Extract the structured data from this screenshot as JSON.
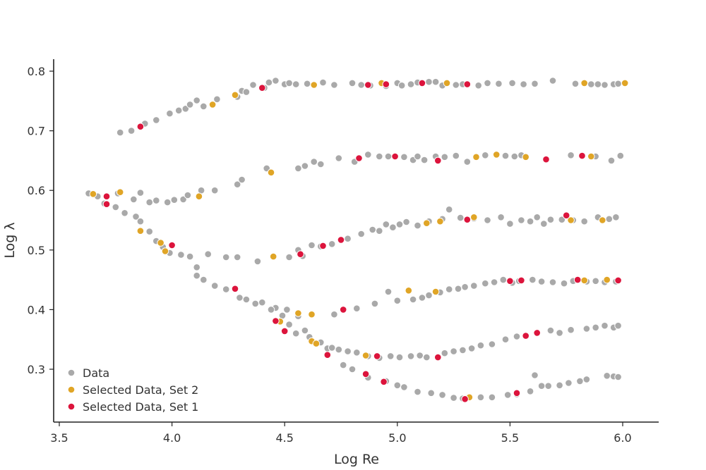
{
  "chart_data": {
    "type": "scatter",
    "xlabel": "Log Re",
    "ylabel": "Log λ",
    "xlim": [
      3.48,
      6.15
    ],
    "ylim": [
      0.21,
      0.83
    ],
    "x_ticks": [
      "3.5",
      "4.0",
      "4.5",
      "5.0",
      "5.5",
      "6.0"
    ],
    "y_ticks": [
      "0.3",
      "0.4",
      "0.5",
      "0.6",
      "0.7",
      "0.8"
    ],
    "legend_position": "bottom-left",
    "series": [
      {
        "name": "Data",
        "color": "#a9a9a9",
        "points": [
          [
            3.77,
            0.697
          ],
          [
            3.82,
            0.7
          ],
          [
            3.88,
            0.712
          ],
          [
            3.93,
            0.718
          ],
          [
            3.99,
            0.729
          ],
          [
            4.03,
            0.734
          ],
          [
            4.06,
            0.737
          ],
          [
            4.08,
            0.744
          ],
          [
            4.11,
            0.751
          ],
          [
            4.14,
            0.741
          ],
          [
            4.2,
            0.753
          ],
          [
            4.29,
            0.757
          ],
          [
            4.31,
            0.767
          ],
          [
            4.33,
            0.765
          ],
          [
            4.36,
            0.777
          ],
          [
            4.41,
            0.772
          ],
          [
            4.43,
            0.781
          ],
          [
            4.46,
            0.784
          ],
          [
            4.5,
            0.778
          ],
          [
            4.52,
            0.78
          ],
          [
            4.55,
            0.778
          ],
          [
            4.6,
            0.779
          ],
          [
            4.67,
            0.781
          ],
          [
            4.72,
            0.777
          ],
          [
            4.8,
            0.78
          ],
          [
            4.84,
            0.777
          ],
          [
            4.88,
            0.776
          ],
          [
            4.95,
            0.775
          ],
          [
            5.0,
            0.78
          ],
          [
            5.02,
            0.776
          ],
          [
            5.06,
            0.778
          ],
          [
            5.09,
            0.781
          ],
          [
            5.14,
            0.782
          ],
          [
            5.17,
            0.782
          ],
          [
            5.2,
            0.776
          ],
          [
            5.26,
            0.777
          ],
          [
            5.29,
            0.778
          ],
          [
            5.36,
            0.776
          ],
          [
            5.4,
            0.78
          ],
          [
            5.45,
            0.779
          ],
          [
            5.51,
            0.78
          ],
          [
            5.56,
            0.778
          ],
          [
            5.61,
            0.779
          ],
          [
            5.69,
            0.784
          ],
          [
            5.79,
            0.779
          ],
          [
            5.86,
            0.778
          ],
          [
            5.89,
            0.778
          ],
          [
            5.92,
            0.777
          ],
          [
            5.96,
            0.778
          ],
          [
            5.98,
            0.779
          ],
          [
            3.63,
            0.595
          ],
          [
            3.67,
            0.59
          ],
          [
            3.76,
            0.595
          ],
          [
            3.83,
            0.585
          ],
          [
            3.86,
            0.596
          ],
          [
            3.9,
            0.58
          ],
          [
            3.93,
            0.583
          ],
          [
            3.98,
            0.58
          ],
          [
            4.01,
            0.584
          ],
          [
            4.05,
            0.585
          ],
          [
            4.07,
            0.592
          ],
          [
            4.13,
            0.6
          ],
          [
            4.19,
            0.6
          ],
          [
            4.29,
            0.61
          ],
          [
            4.31,
            0.618
          ],
          [
            4.42,
            0.637
          ],
          [
            4.56,
            0.637
          ],
          [
            4.59,
            0.641
          ],
          [
            4.63,
            0.648
          ],
          [
            4.66,
            0.644
          ],
          [
            4.74,
            0.654
          ],
          [
            4.81,
            0.648
          ],
          [
            4.87,
            0.66
          ],
          [
            4.92,
            0.657
          ],
          [
            4.96,
            0.657
          ],
          [
            5.03,
            0.656
          ],
          [
            5.07,
            0.651
          ],
          [
            5.09,
            0.657
          ],
          [
            5.12,
            0.651
          ],
          [
            5.17,
            0.657
          ],
          [
            5.21,
            0.656
          ],
          [
            5.26,
            0.658
          ],
          [
            5.31,
            0.648
          ],
          [
            5.39,
            0.659
          ],
          [
            5.48,
            0.658
          ],
          [
            5.52,
            0.657
          ],
          [
            5.55,
            0.659
          ],
          [
            5.77,
            0.659
          ],
          [
            5.88,
            0.657
          ],
          [
            5.95,
            0.65
          ],
          [
            5.99,
            0.658
          ],
          [
            3.7,
            0.578
          ],
          [
            3.75,
            0.572
          ],
          [
            3.79,
            0.562
          ],
          [
            3.84,
            0.556
          ],
          [
            3.86,
            0.548
          ],
          [
            3.9,
            0.531
          ],
          [
            3.93,
            0.515
          ],
          [
            3.96,
            0.505
          ],
          [
            3.99,
            0.495
          ],
          [
            4.04,
            0.492
          ],
          [
            4.08,
            0.489
          ],
          [
            4.11,
            0.471
          ],
          [
            4.11,
            0.457
          ],
          [
            4.16,
            0.493
          ],
          [
            4.24,
            0.488
          ],
          [
            4.29,
            0.488
          ],
          [
            4.38,
            0.481
          ],
          [
            4.52,
            0.488
          ],
          [
            4.56,
            0.5
          ],
          [
            4.58,
            0.49
          ],
          [
            4.62,
            0.508
          ],
          [
            4.66,
            0.506
          ],
          [
            4.71,
            0.51
          ],
          [
            4.78,
            0.519
          ],
          [
            4.84,
            0.527
          ],
          [
            4.89,
            0.534
          ],
          [
            4.92,
            0.532
          ],
          [
            4.95,
            0.543
          ],
          [
            4.98,
            0.538
          ],
          [
            5.01,
            0.543
          ],
          [
            5.04,
            0.547
          ],
          [
            5.09,
            0.541
          ],
          [
            5.14,
            0.548
          ],
          [
            5.2,
            0.552
          ],
          [
            5.23,
            0.568
          ],
          [
            5.28,
            0.554
          ],
          [
            5.34,
            0.553
          ],
          [
            5.4,
            0.55
          ],
          [
            5.46,
            0.555
          ],
          [
            5.5,
            0.544
          ],
          [
            5.55,
            0.55
          ],
          [
            5.59,
            0.548
          ],
          [
            5.62,
            0.555
          ],
          [
            5.65,
            0.544
          ],
          [
            5.68,
            0.551
          ],
          [
            5.73,
            0.551
          ],
          [
            5.78,
            0.55
          ],
          [
            5.83,
            0.548
          ],
          [
            5.89,
            0.555
          ],
          [
            5.94,
            0.552
          ],
          [
            5.97,
            0.555
          ],
          [
            4.14,
            0.45
          ],
          [
            4.19,
            0.44
          ],
          [
            4.24,
            0.434
          ],
          [
            4.3,
            0.42
          ],
          [
            4.33,
            0.417
          ],
          [
            4.37,
            0.41
          ],
          [
            4.4,
            0.412
          ],
          [
            4.46,
            0.403
          ],
          [
            4.51,
            0.4
          ],
          [
            4.56,
            0.389
          ],
          [
            4.72,
            0.392
          ],
          [
            4.82,
            0.402
          ],
          [
            4.9,
            0.41
          ],
          [
            4.96,
            0.43
          ],
          [
            5.0,
            0.415
          ],
          [
            5.07,
            0.417
          ],
          [
            5.11,
            0.42
          ],
          [
            5.14,
            0.424
          ],
          [
            5.19,
            0.429
          ],
          [
            5.23,
            0.434
          ],
          [
            5.27,
            0.435
          ],
          [
            5.3,
            0.438
          ],
          [
            5.34,
            0.44
          ],
          [
            5.39,
            0.444
          ],
          [
            5.43,
            0.446
          ],
          [
            5.47,
            0.45
          ],
          [
            5.51,
            0.445
          ],
          [
            5.54,
            0.448
          ],
          [
            5.6,
            0.45
          ],
          [
            5.64,
            0.447
          ],
          [
            5.69,
            0.446
          ],
          [
            5.74,
            0.444
          ],
          [
            5.78,
            0.448
          ],
          [
            5.84,
            0.447
          ],
          [
            5.88,
            0.448
          ],
          [
            5.92,
            0.446
          ],
          [
            5.97,
            0.447
          ],
          [
            4.44,
            0.4
          ],
          [
            4.49,
            0.39
          ],
          [
            4.52,
            0.375
          ],
          [
            4.55,
            0.36
          ],
          [
            4.59,
            0.365
          ],
          [
            4.61,
            0.354
          ],
          [
            4.66,
            0.345
          ],
          [
            4.69,
            0.335
          ],
          [
            4.71,
            0.336
          ],
          [
            4.74,
            0.333
          ],
          [
            4.78,
            0.33
          ],
          [
            4.82,
            0.328
          ],
          [
            4.87,
            0.322
          ],
          [
            4.92,
            0.319
          ],
          [
            4.97,
            0.322
          ],
          [
            5.01,
            0.32
          ],
          [
            5.06,
            0.322
          ],
          [
            5.1,
            0.323
          ],
          [
            5.13,
            0.32
          ],
          [
            5.21,
            0.327
          ],
          [
            5.25,
            0.33
          ],
          [
            5.29,
            0.332
          ],
          [
            5.33,
            0.335
          ],
          [
            5.37,
            0.34
          ],
          [
            5.42,
            0.342
          ],
          [
            5.48,
            0.35
          ],
          [
            5.53,
            0.355
          ],
          [
            5.57,
            0.357
          ],
          [
            5.68,
            0.365
          ],
          [
            5.72,
            0.361
          ],
          [
            5.77,
            0.366
          ],
          [
            5.84,
            0.368
          ],
          [
            5.88,
            0.37
          ],
          [
            5.92,
            0.373
          ],
          [
            5.96,
            0.37
          ],
          [
            5.98,
            0.373
          ],
          [
            4.76,
            0.307
          ],
          [
            4.8,
            0.3
          ],
          [
            4.87,
            0.286
          ],
          [
            4.95,
            0.28
          ],
          [
            5.0,
            0.273
          ],
          [
            5.03,
            0.27
          ],
          [
            5.09,
            0.262
          ],
          [
            5.15,
            0.26
          ],
          [
            5.2,
            0.257
          ],
          [
            5.25,
            0.252
          ],
          [
            5.29,
            0.251
          ],
          [
            5.37,
            0.253
          ],
          [
            5.42,
            0.253
          ],
          [
            5.49,
            0.257
          ],
          [
            5.53,
            0.258
          ],
          [
            5.59,
            0.263
          ],
          [
            5.61,
            0.29
          ],
          [
            5.64,
            0.272
          ],
          [
            5.67,
            0.272
          ],
          [
            5.72,
            0.273
          ],
          [
            5.76,
            0.277
          ],
          [
            5.81,
            0.28
          ],
          [
            5.84,
            0.283
          ],
          [
            5.93,
            0.289
          ],
          [
            5.96,
            0.288
          ],
          [
            5.98,
            0.287
          ]
        ]
      },
      {
        "name": "Selected Data, Set 2",
        "color": "#e0a526",
        "points": [
          [
            4.18,
            0.744
          ],
          [
            4.28,
            0.76
          ],
          [
            4.63,
            0.777
          ],
          [
            4.93,
            0.78
          ],
          [
            5.22,
            0.78
          ],
          [
            5.83,
            0.78
          ],
          [
            6.01,
            0.78
          ],
          [
            3.65,
            0.594
          ],
          [
            3.77,
            0.597
          ],
          [
            4.12,
            0.59
          ],
          [
            4.44,
            0.63
          ],
          [
            5.35,
            0.656
          ],
          [
            5.44,
            0.66
          ],
          [
            5.57,
            0.656
          ],
          [
            5.86,
            0.657
          ],
          [
            3.86,
            0.532
          ],
          [
            3.95,
            0.512
          ],
          [
            3.97,
            0.498
          ],
          [
            4.45,
            0.489
          ],
          [
            5.13,
            0.545
          ],
          [
            5.19,
            0.548
          ],
          [
            5.34,
            0.555
          ],
          [
            5.77,
            0.55
          ],
          [
            5.91,
            0.55
          ],
          [
            4.48,
            0.38
          ],
          [
            4.56,
            0.394
          ],
          [
            4.62,
            0.392
          ],
          [
            5.05,
            0.432
          ],
          [
            5.17,
            0.43
          ],
          [
            5.83,
            0.449
          ],
          [
            5.93,
            0.45
          ],
          [
            4.62,
            0.347
          ],
          [
            4.64,
            0.343
          ],
          [
            4.86,
            0.323
          ],
          [
            5.32,
            0.253
          ]
        ]
      },
      {
        "name": "Selected Data, Set 1",
        "color": "#dc143c",
        "points": [
          [
            3.86,
            0.707
          ],
          [
            4.4,
            0.772
          ],
          [
            4.87,
            0.777
          ],
          [
            4.95,
            0.778
          ],
          [
            5.11,
            0.78
          ],
          [
            5.31,
            0.778
          ],
          [
            3.71,
            0.59
          ],
          [
            4.83,
            0.654
          ],
          [
            4.99,
            0.657
          ],
          [
            5.18,
            0.65
          ],
          [
            5.66,
            0.652
          ],
          [
            5.82,
            0.658
          ],
          [
            3.71,
            0.577
          ],
          [
            4.0,
            0.508
          ],
          [
            4.57,
            0.493
          ],
          [
            4.67,
            0.507
          ],
          [
            4.75,
            0.517
          ],
          [
            5.31,
            0.551
          ],
          [
            5.75,
            0.558
          ],
          [
            4.28,
            0.435
          ],
          [
            4.46,
            0.381
          ],
          [
            4.5,
            0.364
          ],
          [
            4.76,
            0.4
          ],
          [
            5.5,
            0.448
          ],
          [
            5.55,
            0.449
          ],
          [
            5.8,
            0.45
          ],
          [
            5.98,
            0.449
          ],
          [
            4.69,
            0.324
          ],
          [
            4.86,
            0.292
          ],
          [
            4.91,
            0.322
          ],
          [
            4.94,
            0.279
          ],
          [
            5.18,
            0.32
          ],
          [
            5.3,
            0.25
          ],
          [
            5.53,
            0.26
          ],
          [
            5.57,
            0.356
          ],
          [
            5.62,
            0.361
          ]
        ]
      }
    ]
  }
}
